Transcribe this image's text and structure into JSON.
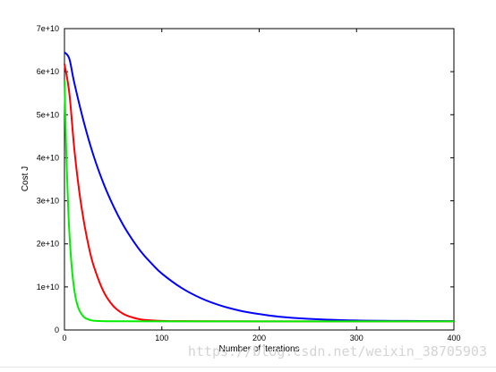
{
  "chart_data": {
    "type": "line",
    "xlabel": "Number of iterations",
    "ylabel": "Cost J",
    "xlim": [
      0,
      400
    ],
    "ylim": [
      0,
      70000000000
    ],
    "xticks": [
      "0",
      "100",
      "200",
      "300",
      "400"
    ],
    "yticks": [
      "0",
      "1e+10",
      "2e+10",
      "3e+10",
      "4e+10",
      "5e+10",
      "6e+10",
      "7e+10"
    ],
    "grid": false,
    "series": [
      {
        "color": "#0000ff",
        "x": [
          0,
          5,
          10,
          20,
          30,
          40,
          50,
          60,
          70,
          80,
          90,
          100,
          120,
          140,
          160,
          180,
          200,
          220,
          250,
          300,
          350,
          400
        ],
        "y": [
          64500000000,
          63000000000,
          57500000000,
          48200000000,
          40400000000,
          34100000000,
          28900000000,
          24500000000,
          20900000000,
          17800000000,
          15300000000,
          13100000000,
          9800000000,
          7400000000,
          5700000000,
          4500000000,
          3700000000,
          3100000000,
          2600000000,
          2200000000,
          2100000000,
          2050000000
        ]
      },
      {
        "color": "#ff0000",
        "x": [
          0,
          5,
          10,
          15,
          20,
          25,
          30,
          40,
          50,
          60,
          70,
          80,
          100,
          120,
          150,
          200,
          300,
          400
        ],
        "y": [
          61800000000,
          55000000000,
          42300000000,
          32500000000,
          25100000000,
          19300000000,
          14900000000,
          9000000000,
          5600000000,
          3800000000,
          2900000000,
          2400000000,
          2100000000,
          2050000000,
          2020000000,
          2010000000,
          2005000000,
          2000000000
        ]
      },
      {
        "color": "#00ee00",
        "x": [
          0,
          2,
          4,
          6,
          8,
          10,
          12,
          15,
          20,
          25,
          30,
          40,
          50,
          100,
          200,
          300,
          400
        ],
        "y": [
          58000000000,
          40000000000,
          27400000000,
          19000000000,
          13300000000,
          9500000000,
          6900000000,
          4700000000,
          3000000000,
          2400000000,
          2150000000,
          2050000000,
          2020000000,
          2000000000,
          2000000000,
          2000000000,
          2000000000
        ]
      }
    ]
  },
  "watermark": "https://blog.csdn.net/weixin_38705903"
}
